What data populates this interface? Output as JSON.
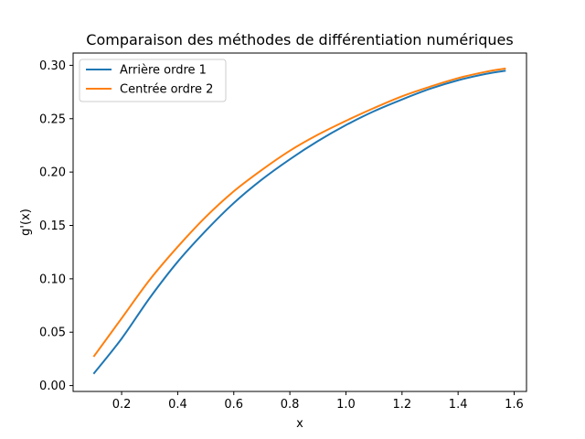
{
  "chart_data": {
    "type": "line",
    "title": "Comparaison des méthodes de différentiation numériques",
    "xlabel": "x",
    "ylabel": "g'(x)",
    "xlim": [
      0.027,
      1.644
    ],
    "ylim": [
      -0.0055,
      0.3115
    ],
    "xticks": [
      0.2,
      0.4,
      0.6,
      0.8,
      1.0,
      1.2,
      1.4,
      1.6
    ],
    "xtick_labels": [
      "0.2",
      "0.4",
      "0.6",
      "0.8",
      "1.0",
      "1.2",
      "1.4",
      "1.6"
    ],
    "yticks": [
      0.0,
      0.05,
      0.1,
      0.15,
      0.2,
      0.25,
      0.3
    ],
    "ytick_labels": [
      "0.00",
      "0.05",
      "0.10",
      "0.15",
      "0.20",
      "0.25",
      "0.30"
    ],
    "grid": false,
    "legend_position": "top-left",
    "series": [
      {
        "name": "Arrière ordre 1",
        "color": "#1f77b4",
        "x": [
          0.1,
          0.2,
          0.3,
          0.4,
          0.5,
          0.6,
          0.7,
          0.8,
          0.9,
          1.0,
          1.1,
          1.2,
          1.3,
          1.4,
          1.5,
          1.57
        ],
        "y": [
          0.011,
          0.044,
          0.082,
          0.116,
          0.145,
          0.171,
          0.193,
          0.212,
          0.229,
          0.244,
          0.257,
          0.268,
          0.278,
          0.286,
          0.292,
          0.295
        ]
      },
      {
        "name": "Centrée ordre 2",
        "color": "#ff7f0e",
        "x": [
          0.1,
          0.2,
          0.3,
          0.4,
          0.5,
          0.6,
          0.7,
          0.8,
          0.9,
          1.0,
          1.1,
          1.2,
          1.3,
          1.4,
          1.5,
          1.57
        ],
        "y": [
          0.027,
          0.063,
          0.099,
          0.13,
          0.158,
          0.182,
          0.202,
          0.22,
          0.235,
          0.248,
          0.26,
          0.271,
          0.28,
          0.288,
          0.294,
          0.297
        ]
      }
    ]
  }
}
